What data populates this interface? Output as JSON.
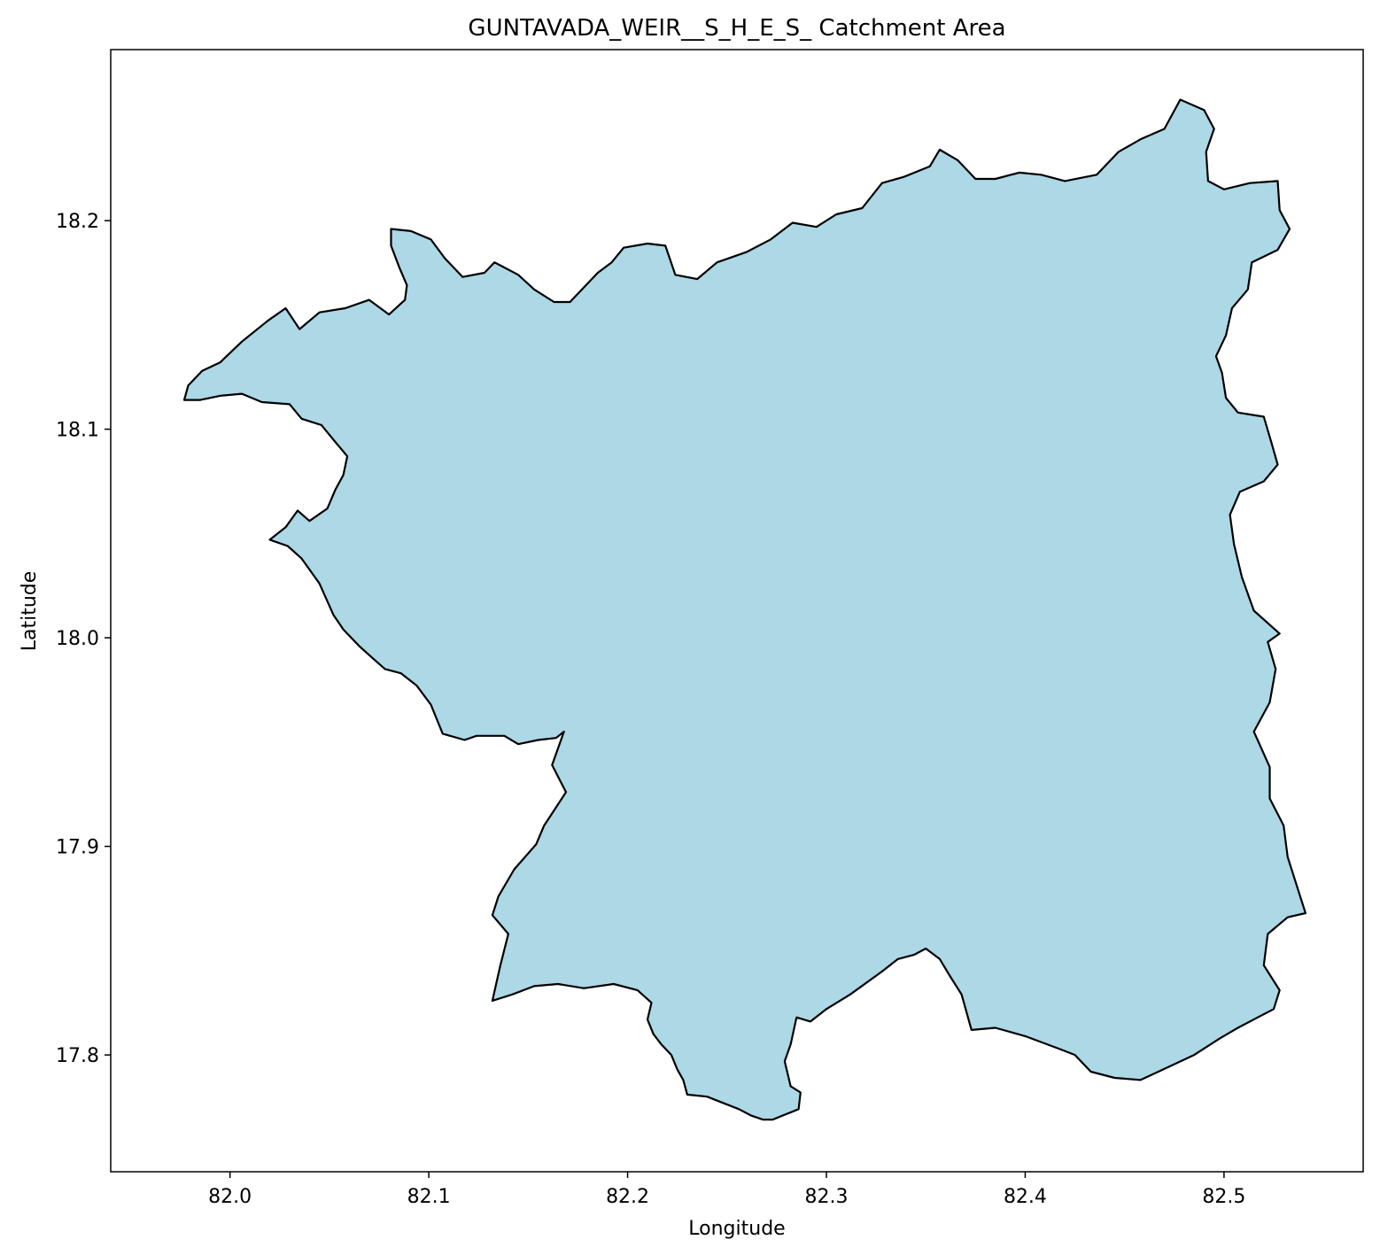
{
  "chart_data": {
    "type": "map",
    "title": "GUNTAVADA_WEIR__S_H_E_S_ Catchment Area",
    "xlabel": "Longitude",
    "ylabel": "Latitude",
    "xlim": [
      81.94,
      82.57
    ],
    "ylim": [
      17.744,
      18.282
    ],
    "xticks": [
      82.0,
      82.1,
      82.2,
      82.3,
      82.4,
      82.5
    ],
    "xtick_labels": [
      "82.0",
      "82.1",
      "82.2",
      "82.3",
      "82.4",
      "82.5"
    ],
    "yticks": [
      17.8,
      17.9,
      18.0,
      18.1,
      18.2
    ],
    "ytick_labels": [
      "17.8",
      "17.9",
      "18.0",
      "18.1",
      "18.2"
    ],
    "grid": false,
    "fill_color": "#add8e6",
    "edge_color": "#000000",
    "boundary": [
      [
        82.273,
        17.769
      ],
      [
        82.286,
        17.774
      ],
      [
        82.287,
        17.782
      ],
      [
        82.282,
        17.785
      ],
      [
        82.279,
        17.797
      ],
      [
        82.282,
        17.805
      ],
      [
        82.285,
        17.818
      ],
      [
        82.292,
        17.816
      ],
      [
        82.3,
        17.822
      ],
      [
        82.312,
        17.829
      ],
      [
        82.328,
        17.84
      ],
      [
        82.336,
        17.846
      ],
      [
        82.344,
        17.848
      ],
      [
        82.35,
        17.851
      ],
      [
        82.357,
        17.846
      ],
      [
        82.362,
        17.838
      ],
      [
        82.368,
        17.829
      ],
      [
        82.373,
        17.812
      ],
      [
        82.385,
        17.813
      ],
      [
        82.4,
        17.809
      ],
      [
        82.417,
        17.803
      ],
      [
        82.425,
        17.8
      ],
      [
        82.433,
        17.792
      ],
      [
        82.445,
        17.789
      ],
      [
        82.458,
        17.788
      ],
      [
        82.467,
        17.792
      ],
      [
        82.485,
        17.8
      ],
      [
        82.498,
        17.808
      ],
      [
        82.507,
        17.813
      ],
      [
        82.517,
        17.818
      ],
      [
        82.525,
        17.822
      ],
      [
        82.528,
        17.831
      ],
      [
        82.52,
        17.843
      ],
      [
        82.522,
        17.858
      ],
      [
        82.532,
        17.866
      ],
      [
        82.541,
        17.868
      ],
      [
        82.537,
        17.88
      ],
      [
        82.532,
        17.895
      ],
      [
        82.53,
        17.91
      ],
      [
        82.523,
        17.923
      ],
      [
        82.523,
        17.938
      ],
      [
        82.515,
        17.955
      ],
      [
        82.523,
        17.969
      ],
      [
        82.526,
        17.985
      ],
      [
        82.522,
        17.998
      ],
      [
        82.528,
        18.002
      ],
      [
        82.515,
        18.013
      ],
      [
        82.509,
        18.029
      ],
      [
        82.505,
        18.045
      ],
      [
        82.503,
        18.059
      ],
      [
        82.508,
        18.07
      ],
      [
        82.52,
        18.075
      ],
      [
        82.527,
        18.083
      ],
      [
        82.524,
        18.093
      ],
      [
        82.52,
        18.106
      ],
      [
        82.507,
        18.108
      ],
      [
        82.501,
        18.115
      ],
      [
        82.499,
        18.127
      ],
      [
        82.496,
        18.135
      ],
      [
        82.501,
        18.145
      ],
      [
        82.504,
        18.158
      ],
      [
        82.512,
        18.167
      ],
      [
        82.514,
        18.18
      ],
      [
        82.527,
        18.186
      ],
      [
        82.533,
        18.196
      ],
      [
        82.528,
        18.205
      ],
      [
        82.527,
        18.219
      ],
      [
        82.513,
        18.218
      ],
      [
        82.5,
        18.215
      ],
      [
        82.492,
        18.219
      ],
      [
        82.491,
        18.233
      ],
      [
        82.495,
        18.244
      ],
      [
        82.49,
        18.253
      ],
      [
        82.478,
        18.258
      ],
      [
        82.47,
        18.244
      ],
      [
        82.458,
        18.239
      ],
      [
        82.447,
        18.233
      ],
      [
        82.436,
        18.222
      ],
      [
        82.42,
        18.219
      ],
      [
        82.408,
        18.222
      ],
      [
        82.397,
        18.223
      ],
      [
        82.385,
        18.22
      ],
      [
        82.375,
        18.22
      ],
      [
        82.366,
        18.229
      ],
      [
        82.357,
        18.234
      ],
      [
        82.352,
        18.226
      ],
      [
        82.339,
        18.221
      ],
      [
        82.328,
        18.218
      ],
      [
        82.318,
        18.206
      ],
      [
        82.305,
        18.203
      ],
      [
        82.295,
        18.197
      ],
      [
        82.283,
        18.199
      ],
      [
        82.272,
        18.191
      ],
      [
        82.26,
        18.185
      ],
      [
        82.245,
        18.18
      ],
      [
        82.235,
        18.172
      ],
      [
        82.224,
        18.174
      ],
      [
        82.219,
        18.188
      ],
      [
        82.21,
        18.189
      ],
      [
        82.198,
        18.187
      ],
      [
        82.192,
        18.18
      ],
      [
        82.185,
        18.175
      ],
      [
        82.178,
        18.168
      ],
      [
        82.171,
        18.161
      ],
      [
        82.163,
        18.161
      ],
      [
        82.153,
        18.167
      ],
      [
        82.145,
        18.174
      ],
      [
        82.137,
        18.178
      ],
      [
        82.133,
        18.18
      ],
      [
        82.128,
        18.175
      ],
      [
        82.117,
        18.173
      ],
      [
        82.108,
        18.182
      ],
      [
        82.101,
        18.191
      ],
      [
        82.091,
        18.195
      ],
      [
        82.081,
        18.196
      ],
      [
        82.081,
        18.188
      ],
      [
        82.085,
        18.178
      ],
      [
        82.089,
        18.169
      ],
      [
        82.088,
        18.162
      ],
      [
        82.08,
        18.155
      ],
      [
        82.07,
        18.162
      ],
      [
        82.058,
        18.158
      ],
      [
        82.045,
        18.156
      ],
      [
        82.035,
        18.148
      ],
      [
        82.028,
        18.158
      ],
      [
        82.019,
        18.152
      ],
      [
        82.006,
        18.142
      ],
      [
        81.995,
        18.132
      ],
      [
        81.986,
        18.128
      ],
      [
        81.979,
        18.121
      ],
      [
        81.977,
        18.114
      ],
      [
        81.985,
        18.114
      ],
      [
        81.995,
        18.116
      ],
      [
        82.006,
        18.117
      ],
      [
        82.016,
        18.113
      ],
      [
        82.03,
        18.112
      ],
      [
        82.036,
        18.105
      ],
      [
        82.046,
        18.102
      ],
      [
        82.052,
        18.095
      ],
      [
        82.059,
        18.087
      ],
      [
        82.057,
        18.078
      ],
      [
        82.053,
        18.071
      ],
      [
        82.049,
        18.062
      ],
      [
        82.04,
        18.056
      ],
      [
        82.034,
        18.061
      ],
      [
        82.028,
        18.053
      ],
      [
        82.02,
        18.047
      ],
      [
        82.029,
        18.044
      ],
      [
        82.036,
        18.038
      ],
      [
        82.045,
        18.026
      ],
      [
        82.052,
        18.011
      ],
      [
        82.057,
        18.004
      ],
      [
        82.065,
        17.996
      ],
      [
        82.072,
        17.99
      ],
      [
        82.078,
        17.985
      ],
      [
        82.086,
        17.983
      ],
      [
        82.094,
        17.977
      ],
      [
        82.101,
        17.968
      ],
      [
        82.107,
        17.954
      ],
      [
        82.118,
        17.951
      ],
      [
        82.124,
        17.953
      ],
      [
        82.138,
        17.953
      ],
      [
        82.145,
        17.949
      ],
      [
        82.155,
        17.951
      ],
      [
        82.164,
        17.952
      ],
      [
        82.168,
        17.955
      ],
      [
        82.162,
        17.939
      ],
      [
        82.169,
        17.926
      ],
      [
        82.158,
        17.91
      ],
      [
        82.154,
        17.901
      ],
      [
        82.143,
        17.889
      ],
      [
        82.135,
        17.876
      ],
      [
        82.132,
        17.867
      ],
      [
        82.14,
        17.858
      ],
      [
        82.136,
        17.843
      ],
      [
        82.132,
        17.826
      ],
      [
        82.142,
        17.829
      ],
      [
        82.153,
        17.833
      ],
      [
        82.165,
        17.834
      ],
      [
        82.178,
        17.832
      ],
      [
        82.193,
        17.834
      ],
      [
        82.205,
        17.831
      ],
      [
        82.212,
        17.825
      ],
      [
        82.21,
        17.817
      ],
      [
        82.213,
        17.81
      ],
      [
        82.217,
        17.805
      ],
      [
        82.222,
        17.8
      ],
      [
        82.225,
        17.793
      ],
      [
        82.228,
        17.788
      ],
      [
        82.23,
        17.781
      ],
      [
        82.24,
        17.78
      ],
      [
        82.248,
        17.777
      ],
      [
        82.256,
        17.774
      ],
      [
        82.262,
        17.771
      ],
      [
        82.268,
        17.769
      ]
    ]
  }
}
